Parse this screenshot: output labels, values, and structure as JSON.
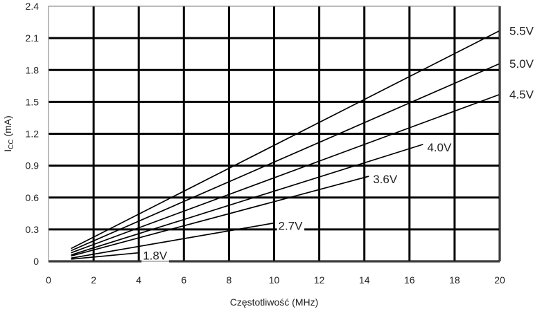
{
  "chart_data": {
    "type": "line",
    "xlabel": "Częstotliwość (MHz)",
    "ylabel_main": "I",
    "ylabel_sub": "CC",
    "ylabel_unit": " (mA)",
    "xlim": [
      0,
      20
    ],
    "ylim": [
      0,
      2.4
    ],
    "x_ticks": [
      0,
      2,
      4,
      6,
      8,
      10,
      12,
      14,
      16,
      18,
      20
    ],
    "y_ticks": [
      0,
      0.3,
      0.6,
      0.9,
      1.2,
      1.5,
      1.8,
      2.1,
      2.4
    ],
    "x_tick_labels": [
      "0",
      "2",
      "4",
      "6",
      "8",
      "10",
      "12",
      "14",
      "16",
      "18",
      "20"
    ],
    "y_tick_labels": [
      "0",
      "0.3",
      "0.6",
      "0.9",
      "1.2",
      "1.5",
      "1.8",
      "2.1",
      "2.4"
    ],
    "grid": true,
    "series": [
      {
        "name": "5.5V",
        "x": [
          1,
          20
        ],
        "y": [
          0.12,
          2.17
        ]
      },
      {
        "name": "5.0V",
        "x": [
          1,
          20
        ],
        "y": [
          0.1,
          1.86
        ]
      },
      {
        "name": "4.5V",
        "x": [
          1,
          20
        ],
        "y": [
          0.08,
          1.57
        ]
      },
      {
        "name": "4.0V",
        "x": [
          1,
          16.6
        ],
        "y": [
          0.06,
          1.1
        ]
      },
      {
        "name": "3.6V",
        "x": [
          1,
          14.2
        ],
        "y": [
          0.05,
          0.8
        ]
      },
      {
        "name": "2.7V",
        "x": [
          1,
          10.0
        ],
        "y": [
          0.03,
          0.36
        ]
      },
      {
        "name": "1.8V",
        "x": [
          1,
          4.0
        ],
        "y": [
          0.02,
          0.08
        ]
      }
    ]
  }
}
